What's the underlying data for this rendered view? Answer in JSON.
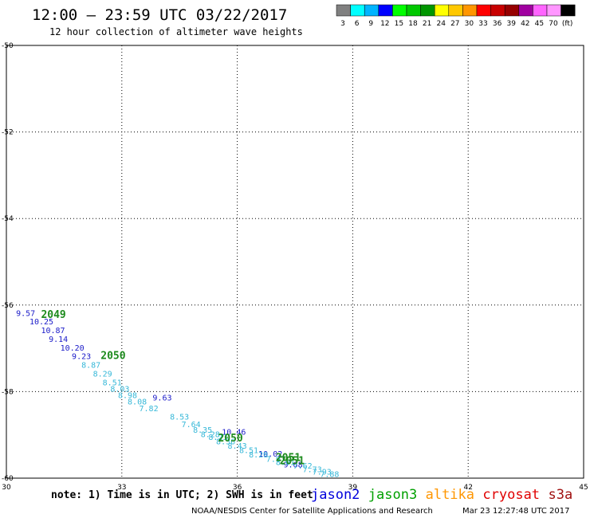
{
  "header": {
    "title": "12:00 — 23:59 UTC 03/22/2017",
    "subtitle": "12 hour collection of altimeter wave heights"
  },
  "color_scale": {
    "colors": [
      "#808080",
      "#00ffff",
      "#00b4ff",
      "#0000ff",
      "#00ff00",
      "#00c800",
      "#009600",
      "#ffff00",
      "#ffc800",
      "#ff9600",
      "#ff0000",
      "#c80000",
      "#960000",
      "#a000a0",
      "#ff64ff",
      "#ff96ff",
      "#000000"
    ],
    "labels": [
      "3",
      "6",
      "9",
      "12",
      "15",
      "18",
      "21",
      "24",
      "27",
      "30",
      "33",
      "36",
      "39",
      "42",
      "45",
      "70",
      "(ft)"
    ]
  },
  "chart_data": {
    "type": "scatter",
    "title": "12:00 — 23:59 UTC 03/22/2017",
    "subtitle": "12 hour collection of altimeter wave heights",
    "xlim": [
      30,
      45
    ],
    "ylim": [
      -60,
      -50
    ],
    "x_ticks": [
      "30",
      "33",
      "36",
      "39",
      "42",
      "45"
    ],
    "y_ticks": [
      "-50",
      "-52",
      "-54",
      "-56",
      "-58",
      "-60"
    ],
    "grid": true,
    "units": "feet",
    "series": [
      {
        "name": "jason2",
        "color": "#1a1ac8",
        "points": [
          {
            "lon": 30.25,
            "lat": -56.25,
            "v": "9.57"
          },
          {
            "lon": 30.6,
            "lat": -56.45,
            "v": "10.25"
          },
          {
            "lon": 30.9,
            "lat": -56.65,
            "v": "10.87"
          },
          {
            "lon": 31.1,
            "lat": -56.85,
            "v": "9.14"
          },
          {
            "lon": 31.4,
            "lat": -57.05,
            "v": "10.20"
          },
          {
            "lon": 31.7,
            "lat": -57.25,
            "v": "9.23"
          },
          {
            "lon": 33.8,
            "lat": -58.2,
            "v": "9.63"
          },
          {
            "lon": 35.6,
            "lat": -59.0,
            "v": "10.46"
          },
          {
            "lon": 36.55,
            "lat": -59.5,
            "v": "10.02"
          },
          {
            "lon": 37.2,
            "lat": -59.75,
            "v": "9.68"
          }
        ]
      },
      {
        "name": "jason3",
        "color": "#37b8d8",
        "points": [
          {
            "lon": 31.95,
            "lat": -57.45,
            "v": "8.87"
          },
          {
            "lon": 32.25,
            "lat": -57.65,
            "v": "8.29"
          },
          {
            "lon": 32.5,
            "lat": -57.85,
            "v": "8.51"
          },
          {
            "lon": 32.7,
            "lat": -58.0,
            "v": "8.03"
          },
          {
            "lon": 32.9,
            "lat": -58.15,
            "v": "8.98"
          },
          {
            "lon": 33.15,
            "lat": -58.3,
            "v": "8.08"
          },
          {
            "lon": 33.45,
            "lat": -58.45,
            "v": "7.82"
          },
          {
            "lon": 34.25,
            "lat": -58.65,
            "v": "8.53"
          },
          {
            "lon": 34.55,
            "lat": -58.82,
            "v": "7.64"
          },
          {
            "lon": 34.85,
            "lat": -58.95,
            "v": "8.35"
          },
          {
            "lon": 35.05,
            "lat": -59.05,
            "v": "8.28"
          },
          {
            "lon": 35.25,
            "lat": -59.12,
            "v": "8.23"
          },
          {
            "lon": 35.45,
            "lat": -59.22,
            "v": "8.36"
          },
          {
            "lon": 35.75,
            "lat": -59.32,
            "v": "8.43"
          },
          {
            "lon": 36.05,
            "lat": -59.42,
            "v": "8.51"
          },
          {
            "lon": 36.3,
            "lat": -59.52,
            "v": "8.28"
          },
          {
            "lon": 36.75,
            "lat": -59.62,
            "v": "7.97"
          },
          {
            "lon": 37.0,
            "lat": -59.7,
            "v": "8.01"
          },
          {
            "lon": 37.45,
            "lat": -59.78,
            "v": "7.62"
          },
          {
            "lon": 37.7,
            "lat": -59.86,
            "v": "7.73"
          },
          {
            "lon": 37.95,
            "lat": -59.92,
            "v": "7.93"
          },
          {
            "lon": 38.15,
            "lat": -59.97,
            "v": "7.88"
          }
        ]
      }
    ],
    "time_labels": [
      {
        "lon": 30.9,
        "lat": -56.3,
        "text": "2049"
      },
      {
        "lon": 32.45,
        "lat": -57.25,
        "text": "2050"
      },
      {
        "lon": 35.5,
        "lat": -59.15,
        "text": "2050"
      },
      {
        "lon": 37.0,
        "lat": -59.6,
        "text": "2051"
      },
      {
        "lon": 37.1,
        "lat": -59.68,
        "text": "2051"
      }
    ]
  },
  "footer": {
    "note": "note: 1) Time is in UTC; 2) SWH is in feet",
    "legend": [
      {
        "name": "jason2",
        "color": "#0000dc"
      },
      {
        "name": "jason3",
        "color": "#00a000"
      },
      {
        "name": "altika",
        "color": "#ff9600"
      },
      {
        "name": "cryosat",
        "color": "#e00000"
      },
      {
        "name": "s3a",
        "color": "#a01010"
      }
    ],
    "credit": "NOAA/NESDIS Center for Satellite Applications and Research",
    "timestamp": "Mar 23 12:27:48 UTC 2017"
  }
}
